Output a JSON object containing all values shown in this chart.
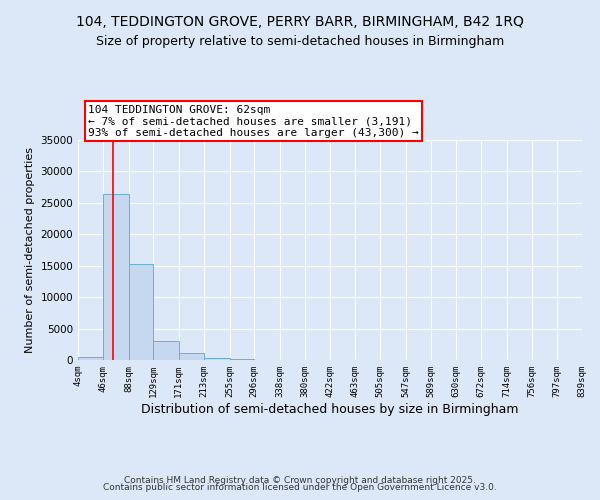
{
  "title": "104, TEDDINGTON GROVE, PERRY BARR, BIRMINGHAM, B42 1RQ",
  "subtitle": "Size of property relative to semi-detached houses in Birmingham",
  "xlabel": "Distribution of semi-detached houses by size in Birmingham",
  "ylabel": "Number of semi-detached properties",
  "bin_edges": [
    4,
    46,
    88,
    129,
    171,
    213,
    255,
    296,
    338,
    380,
    422,
    463,
    505,
    547,
    589,
    630,
    672,
    714,
    756,
    797,
    839
  ],
  "bar_heights": [
    400,
    26400,
    15300,
    3100,
    1150,
    350,
    100,
    0,
    0,
    0,
    0,
    0,
    0,
    0,
    0,
    0,
    0,
    0,
    0,
    0
  ],
  "bar_color": "#c5d8f0",
  "bar_edgecolor": "#6baed6",
  "vline_x": 62,
  "vline_color": "red",
  "annotation_title": "104 TEDDINGTON GROVE: 62sqm",
  "annotation_line2": "← 7% of semi-detached houses are smaller (3,191)",
  "annotation_line3": "93% of semi-detached houses are larger (43,300) →",
  "annotation_box_facecolor": "white",
  "annotation_box_edgecolor": "red",
  "ylim": [
    0,
    35000
  ],
  "yticks": [
    0,
    5000,
    10000,
    15000,
    20000,
    25000,
    30000,
    35000
  ],
  "tick_labels": [
    "4sqm",
    "46sqm",
    "88sqm",
    "129sqm",
    "171sqm",
    "213sqm",
    "255sqm",
    "296sqm",
    "338sqm",
    "380sqm",
    "422sqm",
    "463sqm",
    "505sqm",
    "547sqm",
    "589sqm",
    "630sqm",
    "672sqm",
    "714sqm",
    "756sqm",
    "797sqm",
    "839sqm"
  ],
  "footer1": "Contains HM Land Registry data © Crown copyright and database right 2025.",
  "footer2": "Contains public sector information licensed under the Open Government Licence v3.0.",
  "background_color": "#dce8f8",
  "plot_bg_color": "#dce8f8",
  "title_fontsize": 10,
  "subtitle_fontsize": 9,
  "annotation_fontsize": 8,
  "footer_fontsize": 6.5,
  "ylabel_fontsize": 8,
  "xlabel_fontsize": 9
}
